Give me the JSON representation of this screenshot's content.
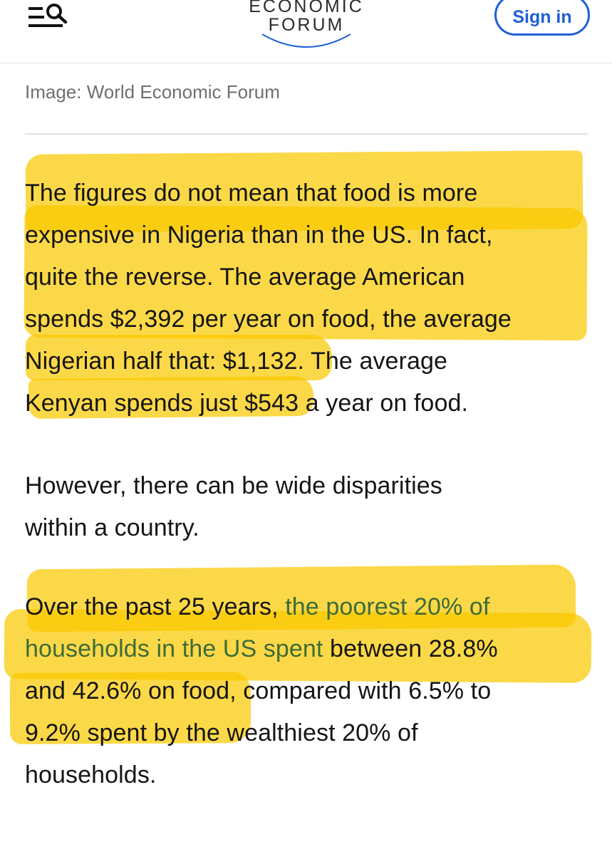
{
  "header": {
    "menu_icon": "menu-search-icon",
    "logo_line1": "ECONOMIC",
    "logo_line2": "FORUM",
    "signin_label": "Sign in",
    "accent_color": "#1f5fd6"
  },
  "caption": "Image: World Economic Forum",
  "highlight_color": "#f9c900",
  "paragraphs": [
    {
      "lines": [
        "The figures do not mean that food is more",
        "expensive in Nigeria than in the US. In fact,",
        "quite the reverse. The average American",
        "spends $2,392 per year on food, the average",
        "Nigerian half that: $1,132. The average",
        "Kenyan spends just $543 a year on food."
      ]
    },
    {
      "lines": [
        "However, there can be wide disparities",
        "within a country."
      ]
    },
    {
      "line1_prefix": "Over the past 25 years, ",
      "line1_link": "the poorest 20% of",
      "line2_link": "households in the US spent",
      "line2_suffix": " between 28.8%",
      "line3": "and 42.6% on food, compared with 6.5% to",
      "line4": "9.2% spent by the wealthiest 20% of",
      "line5": "households.",
      "link_color": "#3e6b38"
    }
  ]
}
